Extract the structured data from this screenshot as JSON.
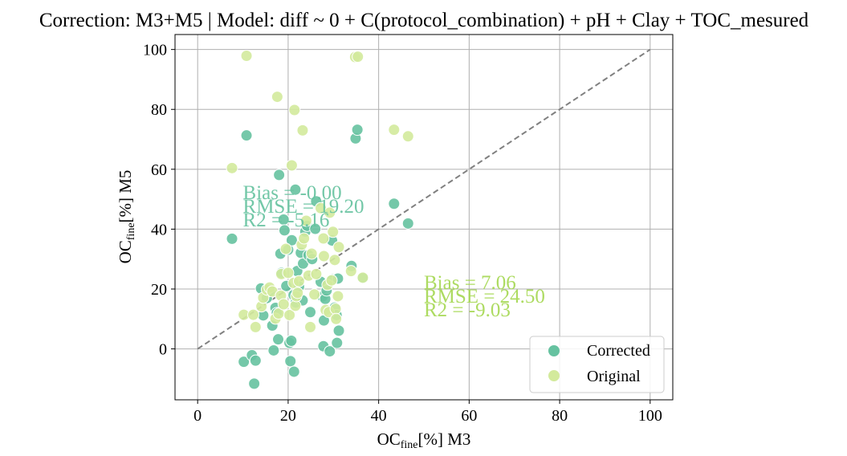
{
  "chart_data": {
    "type": "scatter",
    "title": "Correction: M3+M5 | Model: diff ~ 0 + C(protocol_combination) + pH + Clay + TOC_mesured",
    "xlabel": {
      "main": "OC",
      "sub": "fine",
      "rest": "[%] M3"
    },
    "ylabel": {
      "main": "OC",
      "sub": "fine",
      "rest": "[%] M5"
    },
    "xlim": [
      -5,
      105
    ],
    "ylim": [
      -17,
      105
    ],
    "xticks": [
      "0",
      "20",
      "40",
      "60",
      "80",
      "100"
    ],
    "yticks": [
      "0",
      "20",
      "40",
      "60",
      "80",
      "100"
    ],
    "grid": true,
    "legend_position": "lower-right",
    "identity_line": {
      "x": [
        0,
        100
      ],
      "y": [
        0,
        100
      ],
      "color": "#808080",
      "style": "dashed"
    },
    "series": [
      {
        "name": "Corrected",
        "color": "#66c2a0",
        "points": [
          [
            7.6,
            36.8
          ],
          [
            10.8,
            71.3
          ],
          [
            10.2,
            -4.3
          ],
          [
            12.0,
            -2.1
          ],
          [
            12.5,
            -11.6
          ],
          [
            12.8,
            -3.9
          ],
          [
            14.0,
            20.2
          ],
          [
            14.5,
            11.2
          ],
          [
            15.3,
            17.0
          ],
          [
            15.9,
            19.3
          ],
          [
            16.5,
            7.8
          ],
          [
            16.8,
            -0.5
          ],
          [
            17.2,
            13.7
          ],
          [
            17.5,
            12.0
          ],
          [
            17.8,
            3.2
          ],
          [
            18.0,
            58.1
          ],
          [
            18.3,
            31.8
          ],
          [
            18.5,
            25.4
          ],
          [
            19.0,
            43.2
          ],
          [
            19.2,
            39.6
          ],
          [
            19.6,
            21.0
          ],
          [
            20.0,
            33.1
          ],
          [
            20.3,
            2.0
          ],
          [
            20.5,
            -4.1
          ],
          [
            20.7,
            2.7
          ],
          [
            20.8,
            36.3
          ],
          [
            21.2,
            18.0
          ],
          [
            21.3,
            -7.6
          ],
          [
            21.6,
            53.2
          ],
          [
            21.7,
            15.5
          ],
          [
            22.0,
            26.0
          ],
          [
            22.4,
            20.8
          ],
          [
            22.8,
            32.1
          ],
          [
            23.2,
            16.2
          ],
          [
            23.3,
            28.5
          ],
          [
            23.8,
            39.2
          ],
          [
            24.2,
            41.1
          ],
          [
            24.5,
            31.3
          ],
          [
            24.9,
            12.3
          ],
          [
            25.3,
            30.0
          ],
          [
            26.0,
            40.1
          ],
          [
            26.2,
            49.3
          ],
          [
            27.2,
            22.4
          ],
          [
            27.6,
            17.5
          ],
          [
            27.8,
            0.9
          ],
          [
            27.9,
            9.5
          ],
          [
            28.2,
            16.7
          ],
          [
            28.5,
            19.5
          ],
          [
            29.2,
            -0.8
          ],
          [
            29.7,
            36.2
          ],
          [
            29.8,
            23.2
          ],
          [
            30.3,
            13.8
          ],
          [
            30.7,
            11.3
          ],
          [
            30.8,
            2.0
          ],
          [
            31.0,
            23.5
          ],
          [
            31.2,
            6.1
          ],
          [
            34.0,
            27.7
          ],
          [
            34.9,
            70.3
          ],
          [
            35.3,
            73.2
          ],
          [
            36.5,
            23.6
          ],
          [
            43.4,
            48.5
          ],
          [
            46.5,
            41.9
          ]
        ]
      },
      {
        "name": "Original",
        "color": "#d3ea9c",
        "points": [
          [
            7.6,
            60.4
          ],
          [
            10.2,
            11.4
          ],
          [
            10.8,
            97.9
          ],
          [
            12.3,
            11.4
          ],
          [
            12.8,
            7.3
          ],
          [
            14.1,
            14.2
          ],
          [
            14.5,
            17.1
          ],
          [
            15.3,
            19.8
          ],
          [
            15.9,
            20.5
          ],
          [
            16.5,
            19.2
          ],
          [
            17.2,
            10.1
          ],
          [
            17.6,
            84.2
          ],
          [
            17.9,
            11.8
          ],
          [
            18.4,
            17.8
          ],
          [
            18.5,
            25.0
          ],
          [
            19.0,
            14.9
          ],
          [
            19.5,
            33.4
          ],
          [
            20.0,
            25.4
          ],
          [
            20.3,
            11.3
          ],
          [
            20.8,
            61.3
          ],
          [
            21.2,
            22.0
          ],
          [
            21.4,
            79.8
          ],
          [
            21.6,
            14.4
          ],
          [
            21.8,
            17.6
          ],
          [
            22.1,
            18.7
          ],
          [
            22.4,
            22.6
          ],
          [
            23.0,
            34.8
          ],
          [
            23.2,
            73.0
          ],
          [
            23.5,
            36.9
          ],
          [
            24.0,
            42.8
          ],
          [
            24.5,
            24.5
          ],
          [
            24.9,
            7.3
          ],
          [
            25.2,
            31.8
          ],
          [
            25.8,
            18.2
          ],
          [
            26.2,
            25.0
          ],
          [
            27.2,
            47.0
          ],
          [
            27.8,
            36.9
          ],
          [
            27.9,
            31.0
          ],
          [
            28.3,
            13.0
          ],
          [
            28.7,
            21.4
          ],
          [
            29.0,
            12.3
          ],
          [
            29.2,
            45.5
          ],
          [
            29.6,
            22.9
          ],
          [
            29.9,
            39.1
          ],
          [
            30.3,
            29.7
          ],
          [
            30.5,
            13.4
          ],
          [
            30.6,
            10.0
          ],
          [
            31.0,
            17.6
          ],
          [
            31.2,
            34.0
          ],
          [
            33.9,
            26.0
          ],
          [
            34.8,
            97.5
          ],
          [
            35.4,
            97.6
          ],
          [
            36.5,
            23.8
          ],
          [
            43.4,
            73.2
          ],
          [
            46.5,
            71.0
          ]
        ]
      }
    ],
    "annotations": [
      {
        "series": "Corrected",
        "x": 10,
        "y": 50,
        "color": "#66c2a0",
        "lines": [
          "Bias = -0.00",
          "RMSE = 19.20",
          "R2 = -5.16"
        ]
      },
      {
        "series": "Original",
        "x": 50,
        "y": 20,
        "color": "#a6d854",
        "lines": [
          "Bias = 7.06",
          "RMSE = 24.50",
          "R2 = -9.03"
        ]
      }
    ]
  }
}
